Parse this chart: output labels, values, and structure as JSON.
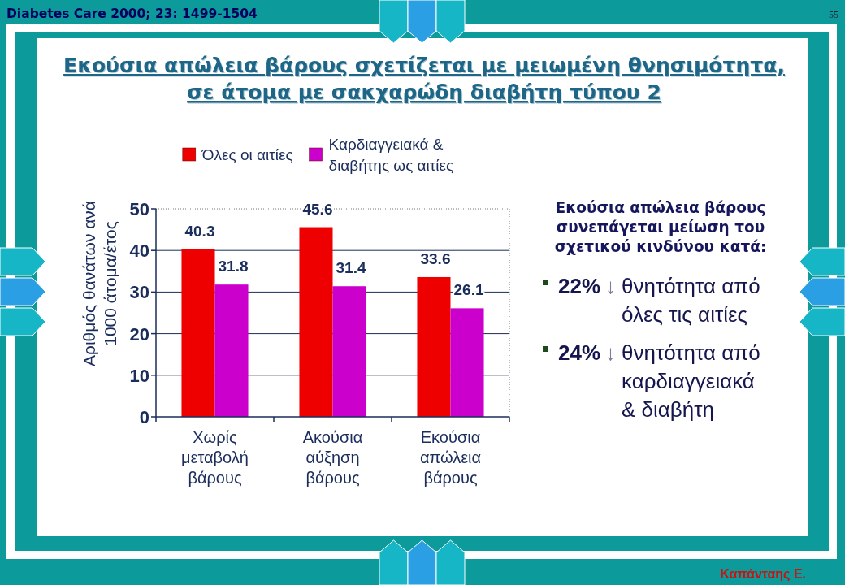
{
  "chart_data": {
    "type": "bar",
    "title": "Εκούσια απώλεια βάρους σχετίζεται με μειωμένη θνησιμότητα, σε άτομα με σακχαρώδη διαβήτη τύπου 2",
    "ylabel": "Αριθμός θανάτων ανά 1000 άτομα/έτος",
    "categories": [
      "Χωρίς μεταβολή βάρους",
      "Ακούσια αύξηση βάρους",
      "Εκούσια απώλεια βάρους"
    ],
    "series": [
      {
        "name": "Όλες οι αιτίες",
        "color": "#ee0000",
        "values": [
          40.3,
          45.6,
          33.6
        ]
      },
      {
        "name": "Καρδιαγγειακά & διαβήτης ως αιτίες",
        "color": "#cc00cc",
        "values": [
          31.8,
          31.4,
          26.1
        ]
      }
    ],
    "ylim": [
      0,
      50
    ],
    "yticks": [
      0,
      10,
      20,
      30,
      40,
      50
    ],
    "grid": "y",
    "legend": "top",
    "data_labels": true,
    "annotations": [
      "Diabetes Care 2000; 23: 1499-1504",
      "55",
      "Εκούσια απώλεια βάρους συνεπάγεται μείωση του σχετικού κινδύνου κατά:",
      "22% ↓ θνητότητα από όλες τις αιτίες",
      "24% ↓ θνητότητα από καρδιαγγειακά & διαβήτη",
      "Καπάνταης Ε."
    ]
  }
}
